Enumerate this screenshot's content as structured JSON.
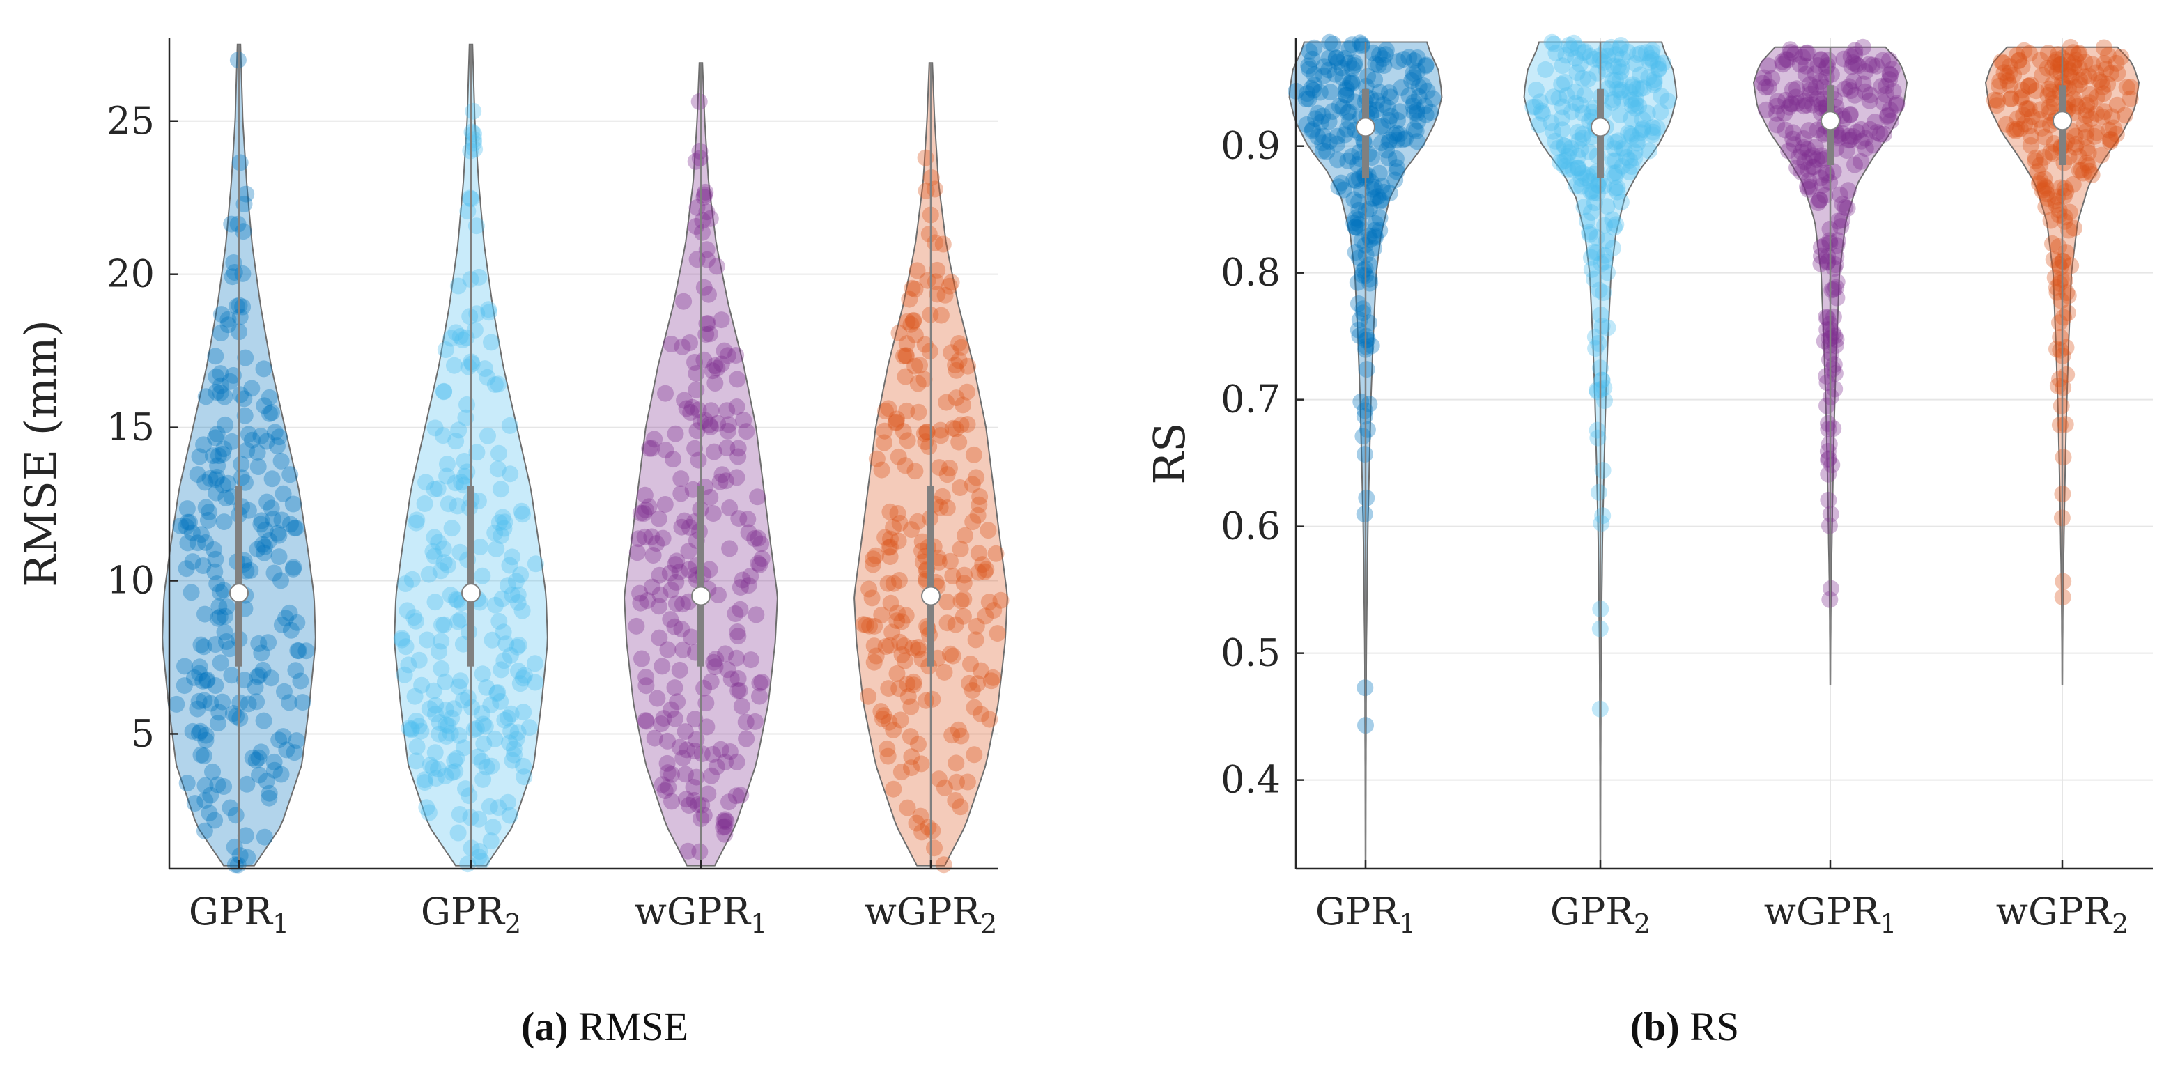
{
  "colors": {
    "GPR1": "#0072BD",
    "GPR2": "#4DBEEE",
    "wGPR1": "#7E2F8E",
    "wGPR2": "#D95319",
    "box": "#808080",
    "grid": "#e6e6e6",
    "axis": "#262626"
  },
  "chart_data": [
    {
      "type": "violin",
      "panel_label": "(a)",
      "caption": "RMSE",
      "ylabel": "RMSE (mm)",
      "xlabel": "",
      "ylim": [
        0.6,
        27.7
      ],
      "yticks": [
        5,
        10,
        15,
        20,
        25
      ],
      "grid": "horizontal",
      "categories": [
        {
          "base": "GPR",
          "sub": "1"
        },
        {
          "base": "GPR",
          "sub": "2"
        },
        {
          "base": "wGPR",
          "sub": "1"
        },
        {
          "base": "wGPR",
          "sub": "2"
        }
      ],
      "series": [
        {
          "color_key": "GPR1",
          "median": 9.6,
          "q1": 7.2,
          "q3": 13.1,
          "min": 0.7,
          "max": 27.5,
          "density": [
            [
              0.7,
              0.2
            ],
            [
              2,
              0.55
            ],
            [
              4,
              0.82
            ],
            [
              6,
              0.92
            ],
            [
              8,
              1.0
            ],
            [
              9.5,
              0.98
            ],
            [
              11,
              0.9
            ],
            [
              13,
              0.78
            ],
            [
              15,
              0.6
            ],
            [
              17,
              0.42
            ],
            [
              19,
              0.28
            ],
            [
              21,
              0.17
            ],
            [
              23,
              0.1
            ],
            [
              25,
              0.05
            ],
            [
              27.5,
              0.02
            ]
          ]
        },
        {
          "color_key": "GPR2",
          "median": 9.6,
          "q1": 7.2,
          "q3": 13.1,
          "min": 0.7,
          "max": 27.5,
          "density": [
            [
              0.7,
              0.2
            ],
            [
              2,
              0.55
            ],
            [
              4,
              0.82
            ],
            [
              6,
              0.92
            ],
            [
              8,
              1.0
            ],
            [
              9.5,
              0.98
            ],
            [
              11,
              0.9
            ],
            [
              13,
              0.78
            ],
            [
              15,
              0.6
            ],
            [
              17,
              0.42
            ],
            [
              19,
              0.28
            ],
            [
              21,
              0.17
            ],
            [
              23,
              0.1
            ],
            [
              25,
              0.05
            ],
            [
              27.5,
              0.02
            ]
          ]
        },
        {
          "color_key": "wGPR1",
          "median": 9.5,
          "q1": 7.2,
          "q3": 13.1,
          "min": 0.7,
          "max": 26.9,
          "density": [
            [
              0.7,
              0.18
            ],
            [
              2,
              0.45
            ],
            [
              4,
              0.72
            ],
            [
              6,
              0.88
            ],
            [
              8,
              0.97
            ],
            [
              9.5,
              1.0
            ],
            [
              11,
              0.92
            ],
            [
              13,
              0.82
            ],
            [
              15,
              0.72
            ],
            [
              17,
              0.56
            ],
            [
              19,
              0.36
            ],
            [
              21,
              0.2
            ],
            [
              23,
              0.1
            ],
            [
              25,
              0.05
            ],
            [
              26.9,
              0.02
            ]
          ]
        },
        {
          "color_key": "wGPR2",
          "median": 9.5,
          "q1": 7.2,
          "q3": 13.1,
          "min": 0.7,
          "max": 26.9,
          "density": [
            [
              0.7,
              0.18
            ],
            [
              2,
              0.45
            ],
            [
              4,
              0.72
            ],
            [
              6,
              0.88
            ],
            [
              8,
              0.97
            ],
            [
              9.5,
              1.0
            ],
            [
              11,
              0.92
            ],
            [
              13,
              0.82
            ],
            [
              15,
              0.72
            ],
            [
              17,
              0.56
            ],
            [
              19,
              0.36
            ],
            [
              21,
              0.2
            ],
            [
              23,
              0.1
            ],
            [
              25,
              0.05
            ],
            [
              26.9,
              0.02
            ]
          ]
        }
      ]
    },
    {
      "type": "violin",
      "panel_label": "(b)",
      "caption": "RS",
      "ylabel": "RS",
      "xlabel": "",
      "ylim": [
        0.33,
        0.985
      ],
      "yticks": [
        0.4,
        0.5,
        0.6,
        0.7,
        0.8,
        0.9
      ],
      "grid": "both",
      "categories": [
        {
          "base": "GPR",
          "sub": "1"
        },
        {
          "base": "GPR",
          "sub": "2"
        },
        {
          "base": "wGPR",
          "sub": "1"
        },
        {
          "base": "wGPR",
          "sub": "2"
        }
      ],
      "series": [
        {
          "color_key": "GPR1",
          "median": 0.915,
          "q1": 0.875,
          "q3": 0.945,
          "min": 0.33,
          "max": 0.982,
          "density": [
            [
              0.33,
              0.0
            ],
            [
              0.5,
              0.01
            ],
            [
              0.6,
              0.03
            ],
            [
              0.65,
              0.05
            ],
            [
              0.7,
              0.07
            ],
            [
              0.75,
              0.1
            ],
            [
              0.8,
              0.14
            ],
            [
              0.83,
              0.2
            ],
            [
              0.86,
              0.32
            ],
            [
              0.88,
              0.5
            ],
            [
              0.9,
              0.75
            ],
            [
              0.92,
              0.92
            ],
            [
              0.94,
              1.0
            ],
            [
              0.96,
              0.95
            ],
            [
              0.98,
              0.8
            ]
          ]
        },
        {
          "color_key": "GPR2",
          "median": 0.915,
          "q1": 0.875,
          "q3": 0.945,
          "min": 0.33,
          "max": 0.982,
          "density": [
            [
              0.33,
              0.0
            ],
            [
              0.5,
              0.01
            ],
            [
              0.6,
              0.03
            ],
            [
              0.65,
              0.05
            ],
            [
              0.7,
              0.07
            ],
            [
              0.75,
              0.1
            ],
            [
              0.8,
              0.14
            ],
            [
              0.83,
              0.2
            ],
            [
              0.86,
              0.32
            ],
            [
              0.88,
              0.5
            ],
            [
              0.9,
              0.75
            ],
            [
              0.92,
              0.92
            ],
            [
              0.94,
              1.0
            ],
            [
              0.96,
              0.95
            ],
            [
              0.98,
              0.8
            ]
          ]
        },
        {
          "color_key": "wGPR1",
          "median": 0.92,
          "q1": 0.885,
          "q3": 0.948,
          "min": 0.475,
          "max": 0.978,
          "density": [
            [
              0.475,
              0.0
            ],
            [
              0.55,
              0.01
            ],
            [
              0.62,
              0.03
            ],
            [
              0.68,
              0.05
            ],
            [
              0.74,
              0.08
            ],
            [
              0.8,
              0.12
            ],
            [
              0.84,
              0.2
            ],
            [
              0.87,
              0.35
            ],
            [
              0.89,
              0.55
            ],
            [
              0.91,
              0.78
            ],
            [
              0.93,
              0.95
            ],
            [
              0.95,
              1.0
            ],
            [
              0.965,
              0.92
            ],
            [
              0.978,
              0.72
            ]
          ]
        },
        {
          "color_key": "wGPR2",
          "median": 0.92,
          "q1": 0.885,
          "q3": 0.948,
          "min": 0.475,
          "max": 0.978,
          "density": [
            [
              0.475,
              0.0
            ],
            [
              0.55,
              0.01
            ],
            [
              0.62,
              0.03
            ],
            [
              0.68,
              0.05
            ],
            [
              0.74,
              0.08
            ],
            [
              0.8,
              0.12
            ],
            [
              0.84,
              0.2
            ],
            [
              0.87,
              0.35
            ],
            [
              0.89,
              0.55
            ],
            [
              0.91,
              0.78
            ],
            [
              0.93,
              0.95
            ],
            [
              0.95,
              1.0
            ],
            [
              0.965,
              0.92
            ],
            [
              0.978,
              0.72
            ]
          ]
        }
      ]
    }
  ]
}
